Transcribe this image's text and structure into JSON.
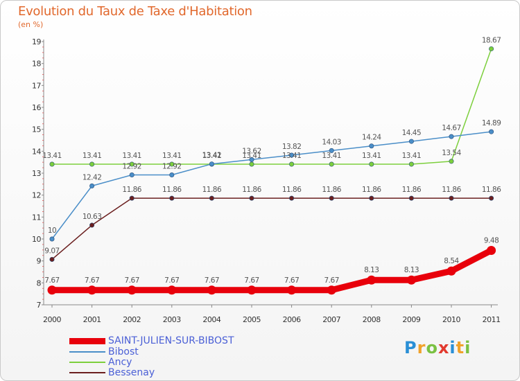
{
  "chart_data": {
    "type": "line",
    "title": "Evolution du Taux de Taxe d'Habitation",
    "subtitle": "(en %)",
    "x": [
      "2000",
      "2001",
      "2002",
      "2003",
      "2004",
      "2005",
      "2006",
      "2007",
      "2008",
      "2009",
      "2010",
      "2011"
    ],
    "ylim": [
      7,
      19
    ],
    "yticks": [
      7,
      8,
      9,
      10,
      11,
      12,
      13,
      14,
      15,
      16,
      17,
      18,
      19
    ],
    "grid": false,
    "legend_position": "bottom-left",
    "series": [
      {
        "name": "SAINT-JULIEN-SUR-BIBOST",
        "color": "#e8000b",
        "values": [
          7.67,
          7.67,
          7.67,
          7.67,
          7.67,
          7.67,
          7.67,
          7.67,
          8.13,
          8.13,
          8.54,
          9.48
        ],
        "labels": [
          "7.67",
          "7.67",
          "7.67",
          "7.67",
          "7.67",
          "7.67",
          "7.67",
          "7.67",
          "8.13",
          "8.13",
          "8.54",
          "9.48"
        ]
      },
      {
        "name": "Bibost",
        "color": "#4a8ec8",
        "values": [
          10,
          12.42,
          12.92,
          12.92,
          13.42,
          13.62,
          13.82,
          14.03,
          14.24,
          14.45,
          14.67,
          14.89
        ],
        "labels": [
          "10",
          "12.42",
          "12.92",
          "12.92",
          "13.42",
          "13.62",
          "13.82",
          "14.03",
          "14.24",
          "14.45",
          "14.67",
          "14.89"
        ]
      },
      {
        "name": "Ancy",
        "color": "#7ccf3c",
        "values": [
          13.41,
          13.41,
          13.41,
          13.41,
          13.41,
          13.41,
          13.41,
          13.41,
          13.41,
          13.41,
          13.54,
          18.67
        ],
        "labels": [
          "13.41",
          "13.41",
          "13.41",
          "13.41",
          "13.41",
          "13.41",
          "13.41",
          "13.41",
          "13.41",
          "13.41",
          "13.54",
          "18.67"
        ]
      },
      {
        "name": "Bessenay",
        "color": "#6b1f1f",
        "values": [
          9.07,
          10.63,
          11.86,
          11.86,
          11.86,
          11.86,
          11.86,
          11.86,
          11.86,
          11.86,
          11.86,
          11.86
        ],
        "labels": [
          "9.07",
          "10.63",
          "11.86",
          "11.86",
          "11.86",
          "11.86",
          "11.86",
          "11.86",
          "11.86",
          "11.86",
          "11.86",
          "11.86"
        ]
      }
    ]
  },
  "brand": {
    "letters": [
      "P",
      "r",
      "o",
      "x",
      "i",
      "t",
      "i"
    ]
  }
}
